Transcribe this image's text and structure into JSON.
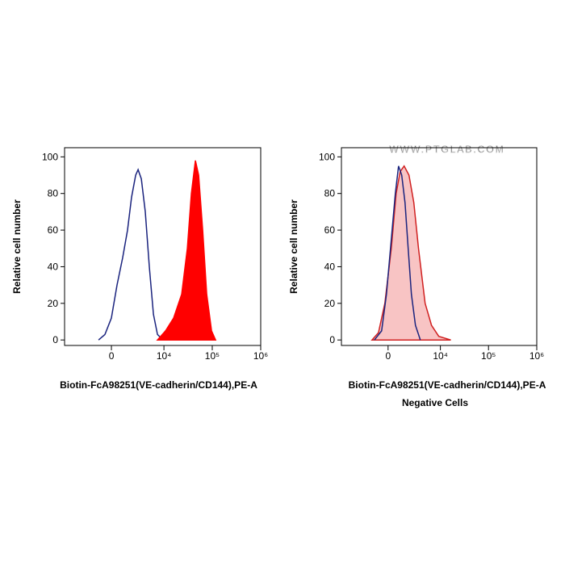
{
  "chart_data": [
    {
      "type": "histogram-overlay",
      "y_label": "Relative cell number",
      "x_label": "Biotin-FcA98251(VE-cadherin/CD144),PE-A",
      "xscale": "biexponential",
      "xlim": [
        -7600,
        1000000
      ],
      "ylim": [
        -3,
        105
      ],
      "xticks": [
        0,
        {
          "value": 10000,
          "label": "10⁴"
        },
        {
          "value": 100000,
          "label": "10⁵"
        },
        {
          "value": 1000000,
          "label": "10⁶"
        }
      ],
      "yticks": [
        0,
        20,
        40,
        60,
        80,
        100
      ],
      "series": [
        {
          "color": "#1a237e",
          "filled": false,
          "x": [
            -1080,
            -520,
            0,
            450,
            935,
            1400,
            1845,
            2365,
            2715,
            3240,
            3985,
            4880,
            5990,
            7305,
            9610
          ],
          "values": [
            0,
            3,
            12,
            30,
            45,
            60,
            78,
            90,
            93,
            88,
            70,
            40,
            14,
            3,
            0
          ]
        },
        {
          "color": "#ff0000",
          "filled": true,
          "fill": "#ff0000",
          "x": [
            7305,
            10790,
            15900,
            23340,
            30550,
            37070,
            44820,
            52290,
            63410,
            76860,
            96780,
            117200
          ],
          "values": [
            0,
            5,
            12,
            25,
            50,
            80,
            98,
            90,
            60,
            25,
            5,
            0
          ]
        }
      ]
    },
    {
      "type": "histogram-overlay",
      "y_label": "Relative cell number",
      "x_label": "Biotin-FcA98251(VE-cadherin/CD144),PE-A",
      "caption": "Negative Cells",
      "watermark": "WWW.PTGLAB.COM",
      "xscale": "biexponential",
      "xlim": [
        -7600,
        1000000
      ],
      "ylim": [
        -3,
        105
      ],
      "xticks": [
        0,
        {
          "value": 10000,
          "label": "10⁴"
        },
        {
          "value": 100000,
          "label": "10⁵"
        },
        {
          "value": 1000000,
          "label": "10⁶"
        }
      ],
      "yticks": [
        0,
        20,
        40,
        60,
        80,
        100
      ],
      "series": [
        {
          "color": "#d02020",
          "filled": true,
          "fill": "#f8c4c4",
          "x": [
            -1400,
            -790,
            -256,
            256,
            652,
            1010,
            1400,
            1940,
            2590,
            3355,
            4715,
            6475,
            9245,
            16490
          ],
          "values": [
            0,
            4,
            20,
            50,
            80,
            92,
            95,
            90,
            75,
            50,
            20,
            8,
            2,
            0
          ]
        },
        {
          "color": "#1a237e",
          "filled": false,
          "x": [
            -1160,
            -520,
            -128,
            256,
            585,
            863,
            1160,
            1490,
            1845,
            2255,
            2840,
            3690
          ],
          "values": [
            0,
            5,
            25,
            55,
            80,
            95,
            90,
            75,
            50,
            25,
            8,
            0
          ]
        }
      ]
    }
  ]
}
